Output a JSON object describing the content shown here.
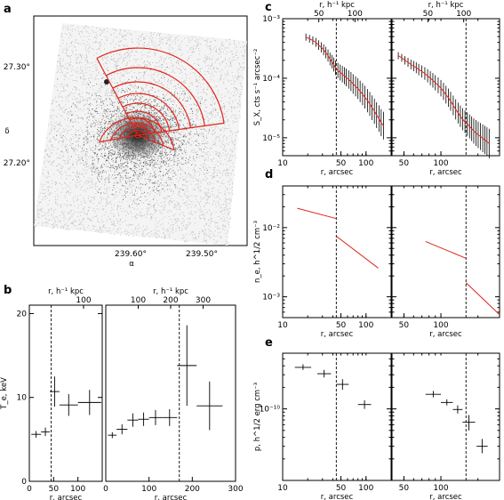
{
  "panel_labels": {
    "a": "a",
    "b": "b",
    "c": "c",
    "d": "d",
    "e": "e"
  },
  "colors": {
    "model": "#e0241b",
    "sky": "#b8b8b8",
    "cluster": "#3a3a3a",
    "data": "#000000"
  },
  "chart_data": [
    {
      "id": "a",
      "type": "image",
      "xlabel": "α",
      "ylabel": "δ",
      "x_ticks": [
        "239.60°",
        "239.50°"
      ],
      "y_ticks": [
        "27.30°",
        "27.20°"
      ]
    },
    {
      "id": "b",
      "type": "scatter",
      "ylabel": "T_e, keV",
      "xlabel": "r, arcsec",
      "top_xlabel": "r, h⁻¹ kpc",
      "ylim": [
        0,
        21
      ],
      "subpanels": [
        {
          "xlim": [
            0,
            150
          ],
          "x_ticks": [
            "0",
            "50",
            "100"
          ],
          "top_ticks": [
            "100"
          ],
          "y_ticks": [
            "0",
            "10",
            "20"
          ],
          "vline": 45,
          "points": [
            {
              "x": [
                4,
                24
              ],
              "y": 5.6,
              "yerr": 0.4
            },
            {
              "x": [
                24,
                42
              ],
              "y": 5.9,
              "yerr": 0.5
            },
            {
              "x": [
                42,
                62
              ],
              "y": 10.7,
              "yerr": 1.8
            },
            {
              "x": [
                62,
                100
              ],
              "y": 9.1,
              "yerr": 1.3
            },
            {
              "x": [
                100,
                148
              ],
              "y": 9.4,
              "yerr": 1.5
            }
          ]
        },
        {
          "xlim": [
            0,
            300
          ],
          "x_ticks": [
            "0",
            "100",
            "200",
            "300"
          ],
          "top_ticks": [
            "100",
            "200",
            "300"
          ],
          "vline": 170,
          "points": [
            {
              "x": [
                5,
                25
              ],
              "y": 5.5,
              "yerr": 0.35
            },
            {
              "x": [
                25,
                50
              ],
              "y": 6.2,
              "yerr": 0.6
            },
            {
              "x": [
                50,
                75
              ],
              "y": 7.3,
              "yerr": 0.8
            },
            {
              "x": [
                75,
                100
              ],
              "y": 7.4,
              "yerr": 0.8
            },
            {
              "x": [
                100,
                130
              ],
              "y": 7.6,
              "yerr": 0.9
            },
            {
              "x": [
                130,
                165
              ],
              "y": 7.6,
              "yerr": 1.0
            },
            {
              "x": [
                165,
                210
              ],
              "y": 13.8,
              "yerr": 4.8
            },
            {
              "x": [
                210,
                270
              ],
              "y": 9.0,
              "yerr": 2.9
            }
          ]
        }
      ]
    },
    {
      "id": "c",
      "type": "scatter",
      "ylabel": "S_X, cts s⁻¹ arcsec⁻²",
      "xlabel": "r, arcsec",
      "top_xlabel": "r, h⁻¹ kpc",
      "y_log": true,
      "ylim": [
        5e-06,
        0.001
      ],
      "y_ticks": [
        "10⁻³",
        "10⁻⁴",
        "10⁻⁵"
      ],
      "subpanels": [
        {
          "xlim": [
            10,
            200
          ],
          "x_log": true,
          "x_ticks": [
            "10",
            "50",
            "100"
          ],
          "top_ticks": [
            "50",
            "100"
          ],
          "vline": 44,
          "x": [
            19,
            21,
            23,
            25,
            27,
            29,
            31,
            33,
            35,
            37,
            39,
            41,
            43,
            46,
            49,
            52,
            55,
            58,
            62,
            66,
            70,
            75,
            80,
            85,
            91,
            97,
            104,
            111,
            118,
            126,
            134,
            143,
            152,
            162
          ],
          "y": [
            0.00049,
            0.00046,
            0.00043,
            0.0004,
            0.00036,
            0.00033,
            0.0003,
            0.00027,
            0.00024,
            0.00021,
            0.00019,
            0.00017,
            0.00015,
            0.000135,
            0.000125,
            0.000117,
            0.00011,
            0.000103,
            9.5e-05,
            8.8e-05,
            8e-05,
            7.3e-05,
            6.7e-05,
            6e-05,
            5.4e-05,
            4.8e-05,
            4.2e-05,
            3.7e-05,
            3.2e-05,
            2.8e-05,
            2.4e-05,
            2.1e-05,
            1.8e-05,
            1.6e-05
          ]
        },
        {
          "xlim": [
            40,
            300
          ],
          "x_log": true,
          "x_ticks": [
            "50",
            "100"
          ],
          "top_ticks": [
            "50",
            "100"
          ],
          "vline": 160,
          "x": [
            45,
            48,
            51,
            54,
            57,
            60,
            63,
            66,
            70,
            74,
            78,
            82,
            86,
            90,
            95,
            100,
            105,
            110,
            115,
            120,
            126,
            132,
            138,
            144,
            150,
            157,
            164,
            171,
            178,
            185,
            193,
            201,
            210,
            219,
            228,
            237,
            247
          ],
          "y": [
            0.00024,
            0.00022,
            0.0002,
            0.000185,
            0.00017,
            0.00016,
            0.00015,
            0.00014,
            0.00013,
            0.00012,
            0.00011,
            0.0001,
            9.2e-05,
            8.4e-05,
            7.6e-05,
            6.8e-05,
            6e-05,
            5.3e-05,
            4.7e-05,
            4.1e-05,
            3.5e-05,
            3e-05,
            2.6e-05,
            2.3e-05,
            2.05e-05,
            1.85e-05,
            1.7e-05,
            1.55e-05,
            1.42e-05,
            1.3e-05,
            1.2e-05,
            1.12e-05,
            1.05e-05,
            9.8e-06,
            9.2e-06,
            8.6e-06,
            8e-06
          ]
        }
      ]
    },
    {
      "id": "d",
      "type": "line",
      "ylabel": "n_e, h^1/2 cm⁻³",
      "xlabel": "r, arcsec",
      "y_log": true,
      "ylim": [
        0.0005,
        0.04
      ],
      "y_ticks": [
        "10⁻²",
        "10⁻³"
      ],
      "subpanels": [
        {
          "xlim": [
            10,
            200
          ],
          "x_log": true,
          "x_ticks": [
            "10",
            "50",
            "100"
          ],
          "vline": 44,
          "segments": [
            {
              "x": [
                15,
                44
              ],
              "y": [
                0.019,
                0.0135
              ]
            },
            {
              "x": [
                44,
                140
              ],
              "y": [
                0.0075,
                0.0026
              ]
            }
          ]
        },
        {
          "xlim": [
            40,
            300
          ],
          "x_log": true,
          "x_ticks": [
            "50",
            "100"
          ],
          "vline": 160,
          "segments": [
            {
              "x": [
                75,
                160
              ],
              "y": [
                0.0063,
                0.0036
              ]
            },
            {
              "x": [
                160,
                300
              ],
              "y": [
                0.0016,
                0.00055
              ]
            }
          ]
        }
      ]
    },
    {
      "id": "e",
      "type": "scatter",
      "ylabel": "p, h^1/2 erg cm⁻³",
      "xlabel": "r, arcsec",
      "y_log": true,
      "ylim": [
        1e-11,
        6e-10
      ],
      "y_ticks": [
        "10⁻¹⁰"
      ],
      "subpanels": [
        {
          "xlim": [
            10,
            200
          ],
          "x_log": true,
          "x_ticks": [
            "10",
            "50",
            "100"
          ],
          "vline": 44,
          "points": [
            {
              "x": [
                14,
                22
              ],
              "y": 3.8e-10,
              "ylo": 3.5e-10,
              "yhi": 4.2e-10
            },
            {
              "x": [
                26,
                38
              ],
              "y": 3.1e-10,
              "ylo": 2.75e-10,
              "yhi": 3.5e-10
            },
            {
              "x": [
                44,
                62
              ],
              "y": 2.2e-10,
              "ylo": 1.85e-10,
              "yhi": 2.6e-10
            },
            {
              "x": [
                80,
                115
              ],
              "y": 1.15e-10,
              "ylo": 1e-10,
              "yhi": 1.32e-10
            }
          ]
        },
        {
          "xlim": [
            40,
            300
          ],
          "x_log": true,
          "x_ticks": [
            "50",
            "100"
          ],
          "vline": 160,
          "points": [
            {
              "x": [
                75,
                100
              ],
              "y": 1.6e-10,
              "ylo": 1.45e-10,
              "yhi": 1.78e-10
            },
            {
              "x": [
                100,
                125
              ],
              "y": 1.23e-10,
              "ylo": 1.12e-10,
              "yhi": 1.36e-10
            },
            {
              "x": [
                125,
                150
              ],
              "y": 9.8e-11,
              "ylo": 8.6e-11,
              "yhi": 1.12e-10
            },
            {
              "x": [
                150,
                190
              ],
              "y": 6.5e-11,
              "ylo": 5e-11,
              "yhi": 8.2e-11
            },
            {
              "x": [
                195,
                240
              ],
              "y": 3e-11,
              "ylo": 2.4e-11,
              "yhi": 3.8e-11
            }
          ]
        }
      ]
    }
  ]
}
